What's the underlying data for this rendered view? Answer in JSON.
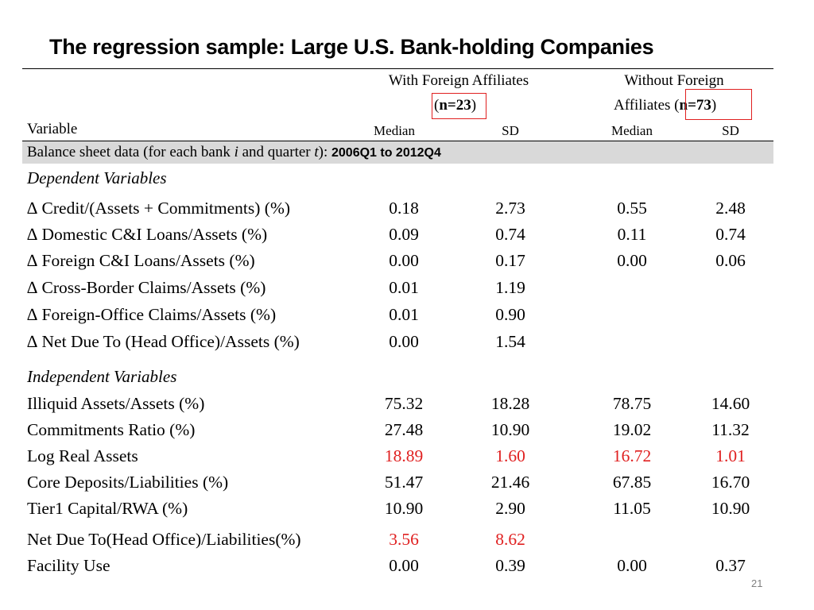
{
  "title": "The regression sample: Large U.S. Bank-holding Companies",
  "header": {
    "group1_line1": "With Foreign Affiliates",
    "group1_n_open": "(",
    "group1_n": "n=23",
    "group1_n_close": ")",
    "group2_line1": "Without Foreign",
    "group2_line2_prefix": "Affiliates (",
    "group2_n": "n=73",
    "group2_n_close": ")",
    "variable": "Variable",
    "median1": "Median",
    "sd1": "SD",
    "median2": "Median",
    "sd2": "SD"
  },
  "band": {
    "prefix": "Balance sheet data (for each bank ",
    "i": "i",
    "middle": " and quarter ",
    "t": "t",
    "suffix": "): ",
    "period": "2006Q1 to 2012Q4"
  },
  "sections": {
    "dependent": "Dependent Variables",
    "independent": "Independent Variables"
  },
  "dependent_rows": [
    {
      "label": "∆ Credit/(Assets + Commitments) (%)",
      "m1": "0.18",
      "sd1": "2.73",
      "m2": "0.55",
      "sd2": "2.48"
    },
    {
      "label": "∆ Domestic C&I Loans/Assets (%)",
      "m1": "0.09",
      "sd1": "0.74",
      "m2": "0.11",
      "sd2": "0.74"
    },
    {
      "label": "∆ Foreign C&I Loans/Assets (%)",
      "m1": "0.00",
      "sd1": "0.17",
      "m2": "0.00",
      "sd2": "0.06"
    },
    {
      "label": "∆ Cross-Border Claims/Assets (%)",
      "m1": "0.01",
      "sd1": "1.19",
      "m2": "",
      "sd2": ""
    },
    {
      "label": "∆ Foreign-Office Claims/Assets (%)",
      "m1": "0.01",
      "sd1": "0.90",
      "m2": "",
      "sd2": ""
    },
    {
      "label": "∆ Net Due To (Head Office)/Assets (%)",
      "m1": "0.00",
      "sd1": "1.54",
      "m2": "",
      "sd2": ""
    }
  ],
  "independent_rows": [
    {
      "label": "Illiquid Assets/Assets (%)",
      "m1": "75.32",
      "sd1": "18.28",
      "m2": "78.75",
      "sd2": "14.60"
    },
    {
      "label": "Commitments Ratio (%)",
      "m1": "27.48",
      "sd1": "10.90",
      "m2": "19.02",
      "sd2": "11.32"
    },
    {
      "label": "Log Real Assets",
      "m1": "18.89",
      "sd1": "1.60",
      "m2": "16.72",
      "sd2": "1.01"
    },
    {
      "label": "Core Deposits/Liabilities (%)",
      "m1": "51.47",
      "sd1": "21.46",
      "m2": "67.85",
      "sd2": "16.70"
    },
    {
      "label": "Tier1 Capital/RWA (%)",
      "m1": "10.90",
      "sd1": "2.90",
      "m2": "11.05",
      "sd2": "10.90"
    },
    {
      "label": "Net Due To(Head Office)/Liabilities(%)",
      "m1": "3.56",
      "sd1": "8.62",
      "m2": "",
      "sd2": ""
    },
    {
      "label": "Facility Use",
      "m1": "0.00",
      "sd1": "0.39",
      "m2": "0.00",
      "sd2": "0.37"
    }
  ],
  "highlight_color": "#e02020",
  "page_number": "21"
}
